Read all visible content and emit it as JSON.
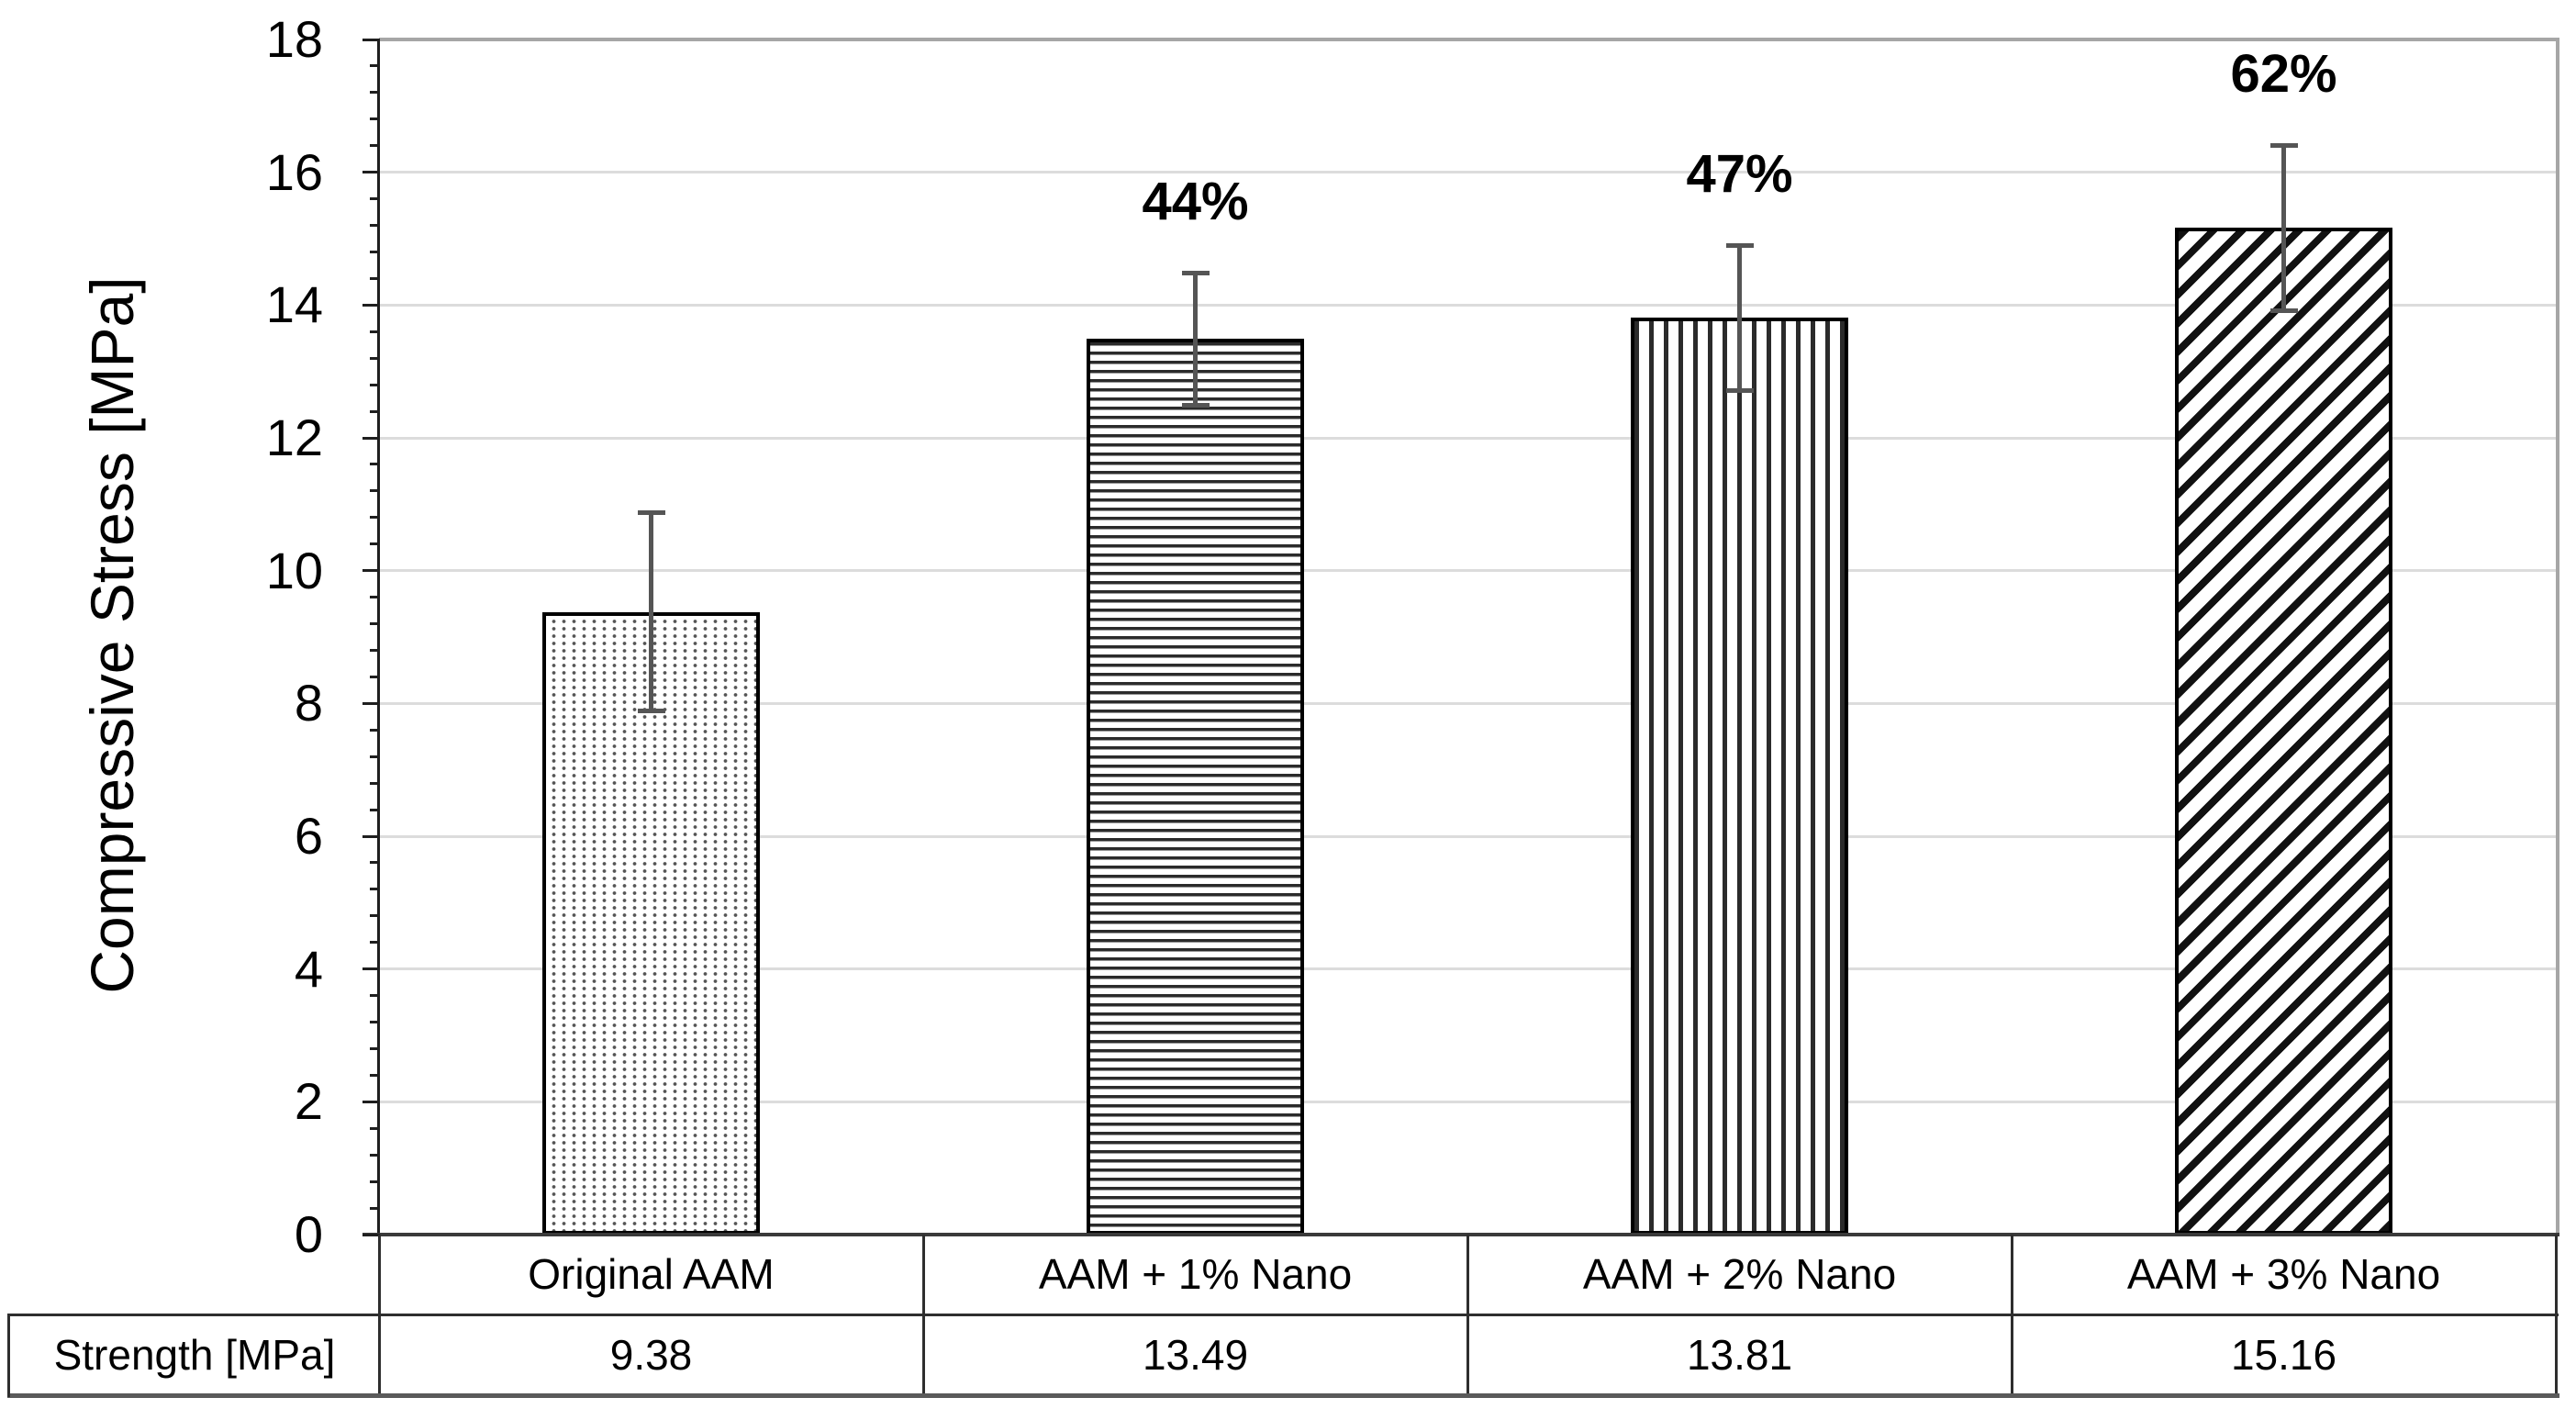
{
  "chart_data": {
    "type": "bar",
    "title": "",
    "xlabel": "",
    "ylabel": "Compressive Stress [MPa]",
    "ylim": [
      0,
      18
    ],
    "y_major_tick": 2,
    "y_minor_tick": 0.4,
    "grid": true,
    "legend": "none",
    "categories": [
      "Original AAM",
      "AAM + 1% Nano",
      "AAM + 2% Nano",
      "AAM + 3% Nano"
    ],
    "values": [
      9.38,
      13.49,
      13.81,
      15.16
    ],
    "error_bars": [
      1.5,
      1.0,
      1.1,
      1.25
    ],
    "pct_labels": [
      "",
      "44%",
      "47%",
      "62%"
    ],
    "patterns": [
      "dots",
      "horizontal-lines",
      "vertical-lines",
      "diagonal-lines"
    ]
  },
  "table": {
    "row_label": "Strength [MPa]",
    "values": [
      "9.38",
      "13.49",
      "13.81",
      "15.16"
    ]
  },
  "colors": {
    "background": "#ffffff",
    "ink": "#000000",
    "gridline": "#dcdcdc",
    "plot_border": "#a6a6a6",
    "axis": "#1f1f1f",
    "error_bar": "#555555"
  }
}
